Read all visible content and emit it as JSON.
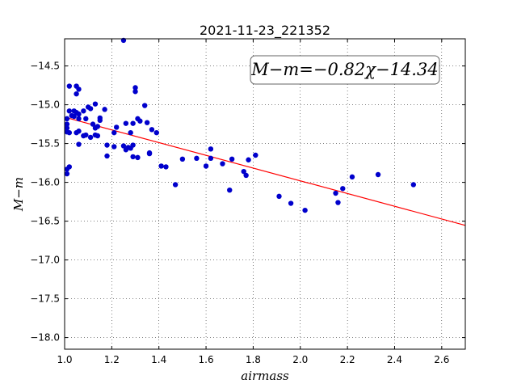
{
  "chart_data": {
    "type": "scatter",
    "title": "2021-11-23_221352",
    "xlabel": "airmass",
    "ylabel": "M−m",
    "xlim": [
      1.0,
      2.7
    ],
    "ylim": [
      -18.15,
      -14.15
    ],
    "x_ticks": [
      1.0,
      1.2,
      1.4,
      1.6,
      1.8,
      2.0,
      2.2,
      2.4,
      2.6
    ],
    "x_tick_labels": [
      "1.0",
      "1.2",
      "1.4",
      "1.6",
      "1.8",
      "2.0",
      "2.2",
      "2.4",
      "2.6"
    ],
    "y_ticks": [
      -14.5,
      -15.0,
      -15.5,
      -16.0,
      -16.5,
      -17.0,
      -17.5,
      -18.0
    ],
    "y_tick_labels": [
      "−14.5",
      "−15.0",
      "−15.5",
      "−16.0",
      "−16.5",
      "−17.0",
      "−17.5",
      "−18.0"
    ],
    "grid": true,
    "annotation": "M−m=−0.82χ−14.34",
    "fit_line": {
      "slope": -0.82,
      "intercept": -14.34,
      "color": "#ff0000"
    },
    "marker_color": "#0000cc",
    "points": [
      [
        1.25,
        -14.17
      ],
      [
        1.02,
        -14.76
      ],
      [
        1.05,
        -14.76
      ],
      [
        1.06,
        -14.8
      ],
      [
        1.05,
        -14.86
      ],
      [
        1.3,
        -14.78
      ],
      [
        1.3,
        -14.83
      ],
      [
        1.13,
        -14.99
      ],
      [
        1.34,
        -15.01
      ],
      [
        1.1,
        -15.03
      ],
      [
        1.11,
        -15.05
      ],
      [
        1.17,
        -15.06
      ],
      [
        1.02,
        -15.08
      ],
      [
        1.04,
        -15.08
      ],
      [
        1.05,
        -15.1
      ],
      [
        1.08,
        -15.08
      ],
      [
        1.06,
        -15.12
      ],
      [
        1.03,
        -15.14
      ],
      [
        1.01,
        -15.18
      ],
      [
        1.04,
        -15.15
      ],
      [
        1.06,
        -15.18
      ],
      [
        1.09,
        -15.18
      ],
      [
        1.15,
        -15.17
      ],
      [
        1.15,
        -15.2
      ],
      [
        1.31,
        -15.18
      ],
      [
        1.32,
        -15.21
      ],
      [
        1.01,
        -15.25
      ],
      [
        1.12,
        -15.25
      ],
      [
        1.14,
        -15.28
      ],
      [
        1.13,
        -15.3
      ],
      [
        1.26,
        -15.24
      ],
      [
        1.29,
        -15.24
      ],
      [
        1.35,
        -15.23
      ],
      [
        1.01,
        -15.3
      ],
      [
        1.22,
        -15.29
      ],
      [
        1.01,
        -15.35
      ],
      [
        1.02,
        -15.36
      ],
      [
        1.06,
        -15.34
      ],
      [
        1.05,
        -15.36
      ],
      [
        1.09,
        -15.39
      ],
      [
        1.08,
        -15.4
      ],
      [
        1.13,
        -15.39
      ],
      [
        1.11,
        -15.42
      ],
      [
        1.14,
        -15.4
      ],
      [
        1.21,
        -15.36
      ],
      [
        1.28,
        -15.36
      ],
      [
        1.37,
        -15.32
      ],
      [
        1.39,
        -15.36
      ],
      [
        1.06,
        -15.51
      ],
      [
        1.18,
        -15.52
      ],
      [
        1.21,
        -15.54
      ],
      [
        1.25,
        -15.53
      ],
      [
        1.27,
        -15.55
      ],
      [
        1.29,
        -15.52
      ],
      [
        1.26,
        -15.58
      ],
      [
        1.28,
        -15.56
      ],
      [
        1.36,
        -15.62
      ],
      [
        1.36,
        -15.63
      ],
      [
        1.18,
        -15.66
      ],
      [
        1.29,
        -15.67
      ],
      [
        1.31,
        -15.68
      ],
      [
        1.5,
        -15.7
      ],
      [
        1.56,
        -15.69
      ],
      [
        1.41,
        -15.79
      ],
      [
        1.43,
        -15.8
      ],
      [
        1.62,
        -15.57
      ],
      [
        1.62,
        -15.69
      ],
      [
        1.6,
        -15.79
      ],
      [
        1.67,
        -15.76
      ],
      [
        1.71,
        -15.7
      ],
      [
        1.78,
        -15.71
      ],
      [
        1.81,
        -15.65
      ],
      [
        1.76,
        -15.86
      ],
      [
        1.77,
        -15.91
      ],
      [
        1.01,
        -15.83
      ],
      [
        1.02,
        -15.8
      ],
      [
        1.01,
        -15.89
      ],
      [
        1.47,
        -16.03
      ],
      [
        1.7,
        -16.1
      ],
      [
        1.91,
        -16.18
      ],
      [
        1.96,
        -16.27
      ],
      [
        2.02,
        -16.36
      ],
      [
        2.15,
        -16.14
      ],
      [
        2.16,
        -16.26
      ],
      [
        2.18,
        -16.08
      ],
      [
        2.22,
        -15.93
      ],
      [
        2.33,
        -15.9
      ],
      [
        2.48,
        -16.03
      ]
    ]
  }
}
